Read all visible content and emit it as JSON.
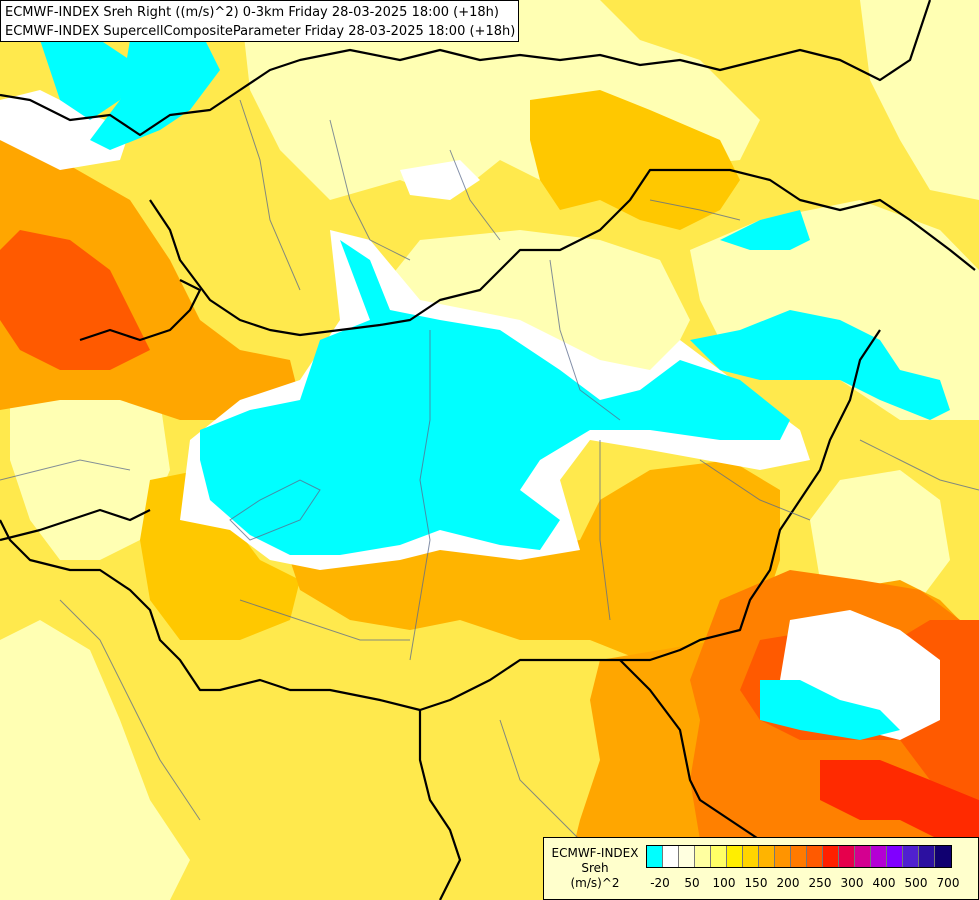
{
  "title_lines": [
    "ECMWF-INDEX Sreh Right ((m/s)^2) 0-3km Friday 28-03-2025 18:00 (+18h)",
    "ECMWF-INDEX SupercellCompositeParameter Friday 28-03-2025 18:00 (+18h)"
  ],
  "legend": {
    "title_line1": "ECMWF-INDEX",
    "title_line2": "Sreh",
    "title_line3": "(m/s)^2",
    "swatch_colors": [
      "#00ffff",
      "#ffffff",
      "#ffffe0",
      "#ffffa0",
      "#ffff66",
      "#ffee00",
      "#ffd400",
      "#ffb400",
      "#ff9400",
      "#ff7a00",
      "#ff5a00",
      "#ff2000",
      "#e6004c",
      "#d40090",
      "#b400d4",
      "#8000ff",
      "#5020d0",
      "#2c10a0",
      "#100070"
    ],
    "tick_labels": [
      "-20",
      "50",
      "100",
      "150",
      "200",
      "250",
      "300",
      "400",
      "500",
      "700"
    ]
  },
  "field_colors": {
    "base": "#ffe94d",
    "light_yellow": "#ffffb3",
    "pale_yellow": "#ffff99",
    "yellow": "#fff200",
    "orange_light": "#ffc800",
    "orange": "#ffa600",
    "orange_dark": "#ff8000",
    "red_orange": "#ff5a00",
    "red": "#ff2a00",
    "cyan": "#00ffff",
    "white": "#ffffff"
  }
}
